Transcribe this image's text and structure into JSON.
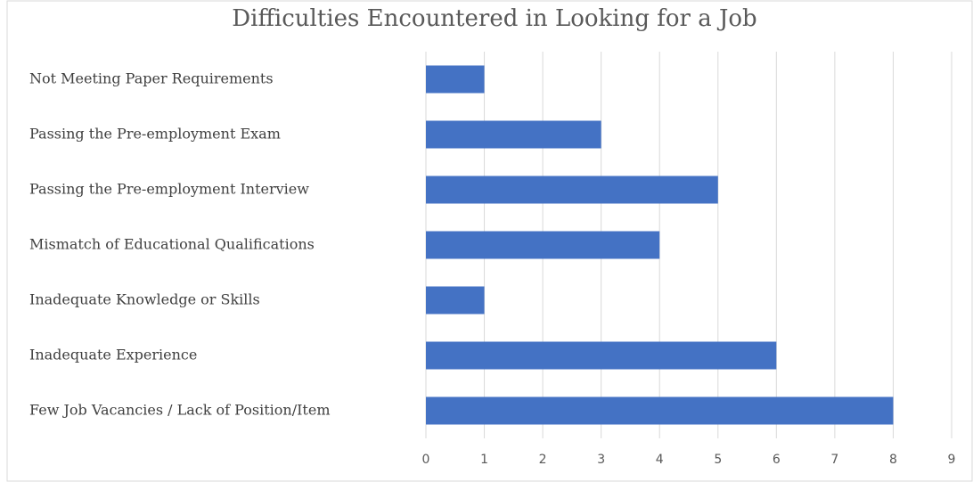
{
  "chart_data": {
    "type": "barh",
    "title": "Difficulties Encountered in Looking for a Job",
    "categories": [
      "Not Meeting Paper Requirements",
      "Passing the Pre-employment Exam",
      "Passing the Pre-employment Interview",
      "Mismatch of Educational Qualifications",
      "Inadequate Knowledge or Skills",
      "Inadequate Experience",
      "Few Job Vacancies / Lack of Position/Item"
    ],
    "values": [
      1,
      3,
      5,
      4,
      1,
      6,
      8
    ],
    "color": "#4472c4",
    "xlim": [
      0,
      9
    ],
    "xticks": [
      0,
      1,
      2,
      3,
      4,
      5,
      6,
      7,
      8,
      9
    ],
    "grid": true
  }
}
